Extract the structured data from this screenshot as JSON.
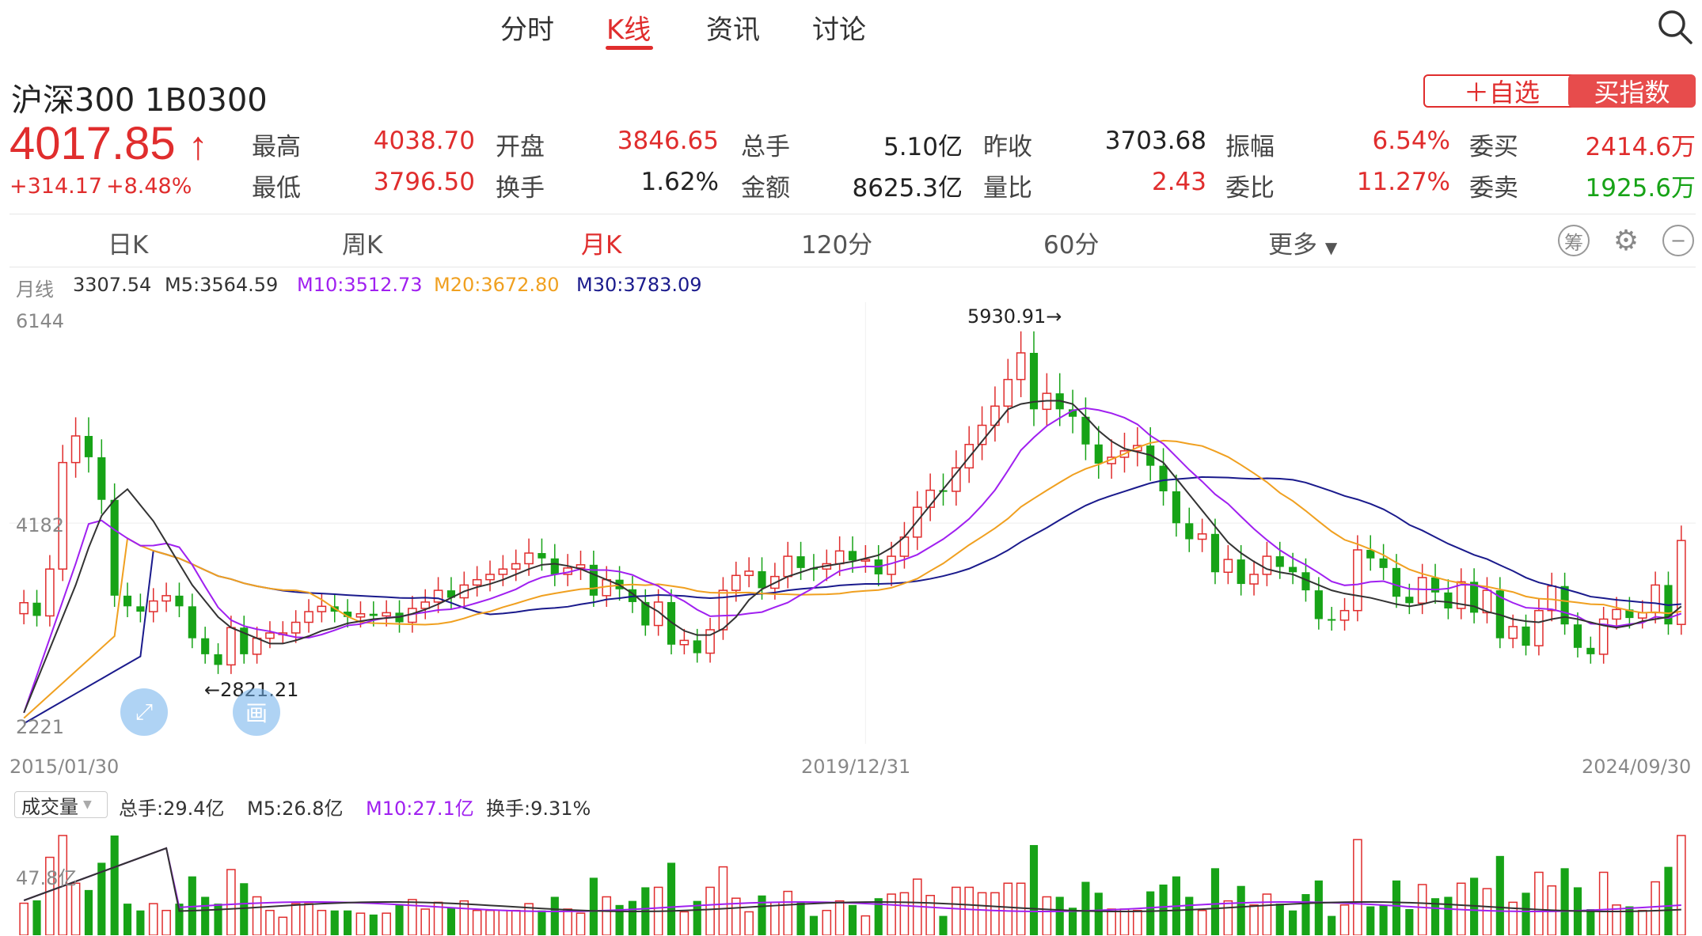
{
  "tabs": [
    "分时",
    "K线",
    "资讯",
    "讨论"
  ],
  "active_tab": "K线",
  "stock": {
    "name": "沪深300 1B0300",
    "price": "4017.85",
    "arrow": "↑",
    "change": "+314.17",
    "change_pct": "+8.48%"
  },
  "buttons": {
    "watchlist": "＋自选",
    "buy": "买指数"
  },
  "quote": [
    {
      "label": "最高",
      "value": "4038.70",
      "color": "red"
    },
    {
      "label": "开盘",
      "value": "3846.65",
      "color": "red"
    },
    {
      "label": "总手",
      "value": "5.10亿",
      "color": "dark"
    },
    {
      "label": "昨收",
      "value": "3703.68",
      "color": "dark"
    },
    {
      "label": "振幅",
      "value": "6.54%",
      "color": "red"
    },
    {
      "label": "委买",
      "value": "2414.6万",
      "color": "red"
    },
    {
      "label": "最低",
      "value": "3796.50",
      "color": "red"
    },
    {
      "label": "换手",
      "value": "1.62%",
      "color": "dark"
    },
    {
      "label": "金额",
      "value": "8625.3亿",
      "color": "dark"
    },
    {
      "label": "量比",
      "value": "2.43",
      "color": "red"
    },
    {
      "label": "委比",
      "value": "11.27%",
      "color": "red"
    },
    {
      "label": "委卖",
      "value": "1925.6万",
      "color": "green"
    }
  ],
  "periods": [
    "日K",
    "周K",
    "月K",
    "120分",
    "60分",
    "更多"
  ],
  "active_period": "月K",
  "ctrl_icons": [
    "筹",
    "⚙",
    "−"
  ],
  "ma": {
    "label": "月线",
    "close": "3307.54",
    "m5": "M5:3564.59",
    "m10": "M10:3512.73",
    "m20": "M20:3672.80",
    "m30": "M30:3783.09"
  },
  "colors": {
    "up": "#e02d2d",
    "down": "#17a317",
    "m5": "#333333",
    "m10": "#a020f0",
    "m20": "#f0a020",
    "m30": "#1a1a8c"
  },
  "axis": {
    "y_top": "6144",
    "y_mid": "4182",
    "y_bottom": "2221",
    "x_start": "2015/01/30",
    "x_mid": "2019/12/31",
    "x_end": "2024/09/30",
    "high_marker": "5930.91→",
    "low_marker": "←2821.21"
  },
  "volume": {
    "selector": "成交量",
    "total": "总手:29.4亿",
    "m5": "M5:26.8亿",
    "m10": "M10:27.1亿",
    "turnover": "换手:9.31%",
    "y_label": "47.8亿"
  },
  "float_icons": [
    "⤢",
    "画"
  ],
  "chart_data": {
    "type": "candlestick",
    "y_range": [
      2221,
      6144
    ],
    "close": [
      3434,
      3310,
      3750,
      4750,
      5000,
      4800,
      4400,
      3500,
      3400,
      3350,
      3450,
      3500,
      3400,
      3100,
      2950,
      2850,
      3200,
      2950,
      3100,
      3150,
      3150,
      3250,
      3350,
      3400,
      3350,
      3300,
      3330,
      3310,
      3340,
      3250,
      3380,
      3440,
      3550,
      3480,
      3600,
      3650,
      3700,
      3750,
      3800,
      3900,
      3850,
      3700,
      3760,
      3790,
      3500,
      3650,
      3560,
      3440,
      3220,
      3440,
      3040,
      3080,
      2960,
      3180,
      3550,
      3690,
      3730,
      3570,
      3680,
      3870,
      3760,
      3750,
      3800,
      3920,
      3830,
      3840,
      3700,
      3870,
      4050,
      4330,
      4490,
      4480,
      4700,
      4920,
      5100,
      5280,
      5530,
      5780,
      5250,
      5400,
      5250,
      5180,
      4920,
      4740,
      4800,
      4860,
      4910,
      4720,
      4480,
      4180,
      4030,
      4080,
      3720,
      3840,
      3610,
      3700,
      3870,
      3770,
      3720,
      3550,
      3280,
      3270,
      3360,
      3930,
      3850,
      3760,
      3490,
      3430,
      3670,
      3530,
      3380,
      3630,
      3340,
      3550,
      3100,
      3210,
      3030,
      3360,
      3590,
      3230,
      3010,
      2950,
      3280,
      3370,
      3290,
      3340,
      3600,
      3230,
      4018
    ],
    "ma_m5": [
      2400,
      2700,
      3000,
      3300,
      3600,
      3950,
      4250,
      4400,
      4500,
      4350,
      4200,
      4000,
      3800,
      3600,
      3450,
      3300,
      3200,
      3150,
      3100,
      3050,
      3050,
      3080,
      3120,
      3170,
      3200,
      3240,
      3260,
      3280,
      3290,
      3300,
      3330,
      3370,
      3420,
      3480,
      3540,
      3580,
      3610,
      3650,
      3700,
      3750,
      3790,
      3800,
      3780,
      3750,
      3700,
      3650,
      3600,
      3520,
      3420,
      3350,
      3250,
      3170,
      3130,
      3130,
      3190,
      3300,
      3460,
      3560,
      3620,
      3680,
      3720,
      3760,
      3780,
      3800,
      3820,
      3850,
      3880,
      3950,
      4050,
      4200,
      4350,
      4500,
      4650,
      4800,
      4950,
      5100,
      5250,
      5300,
      5320,
      5330,
      5330,
      5300,
      5180,
      5050,
      4950,
      4880,
      4850,
      4820,
      4750,
      4600,
      4450,
      4300,
      4150,
      4000,
      3900,
      3820,
      3750,
      3720,
      3700,
      3650,
      3600,
      3550,
      3520,
      3500,
      3480,
      3450,
      3420,
      3400,
      3420,
      3450,
      3440,
      3420,
      3400,
      3350,
      3320,
      3280,
      3260,
      3250,
      3280,
      3300,
      3280,
      3250,
      3220,
      3200,
      3220,
      3260,
      3280,
      3300,
      3400
    ]
  }
}
